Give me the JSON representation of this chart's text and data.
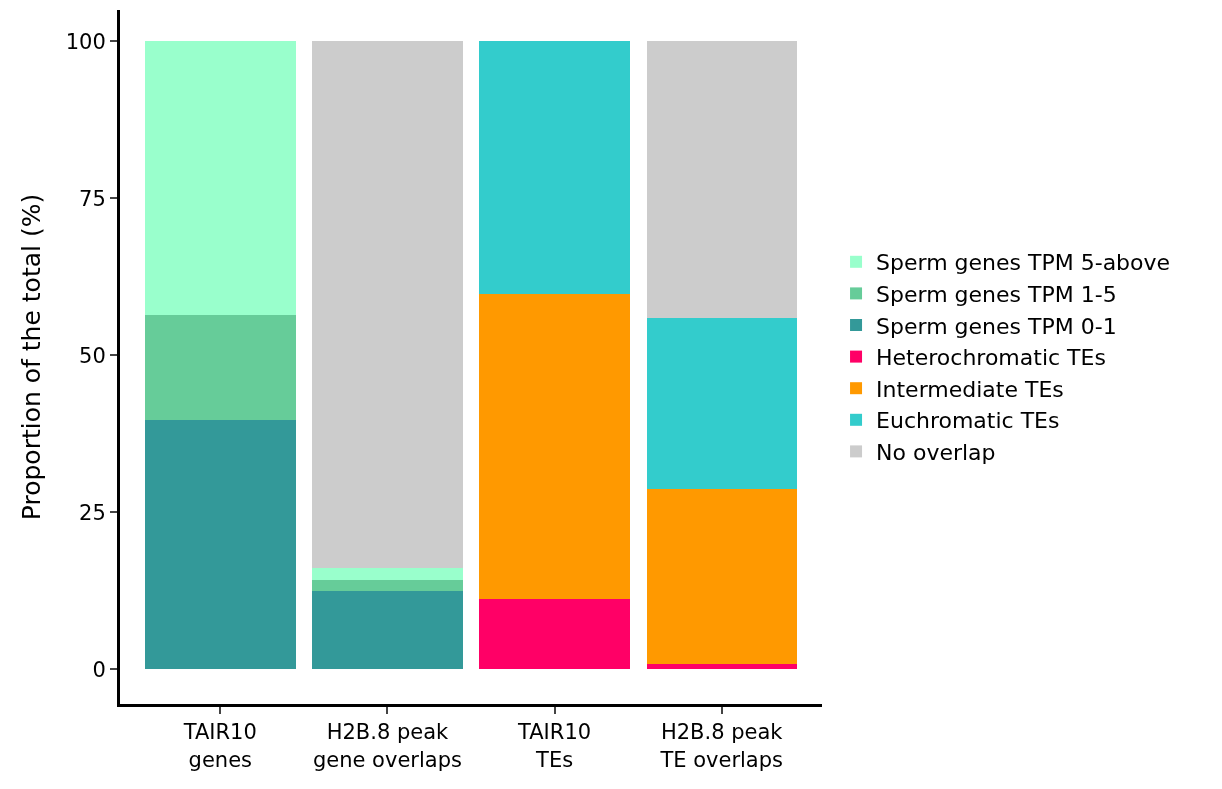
{
  "chart_data": {
    "type": "bar",
    "stacked": true,
    "ylabel": "Proportion of the total (%)",
    "categories": [
      "TAIR10\ngenes",
      "H2B.8 peak\ngene overlaps",
      "TAIR10\nTEs",
      "H2B.8 peak\nTE overlaps"
    ],
    "ylim": [
      -5.5,
      105
    ],
    "yticks": [
      0,
      25,
      50,
      75,
      100
    ],
    "grid": false,
    "legend": "right",
    "series": [
      {
        "name": "Sperm genes TPM 0-1",
        "color": "#339999",
        "values": [
          39.7,
          12.5,
          null,
          null
        ]
      },
      {
        "name": "Sperm genes TPM 1-5",
        "color": "#66cc99",
        "values": [
          16.8,
          1.8,
          null,
          null
        ]
      },
      {
        "name": "Sperm genes TPM 5-above",
        "color": "#99ffcc",
        "values": [
          43.5,
          1.8,
          null,
          null
        ]
      },
      {
        "name": "Heterochromatic TEs",
        "color": "#ff0066",
        "values": [
          null,
          null,
          11.2,
          0.9
        ]
      },
      {
        "name": "Intermediate TEs",
        "color": "#ff9900",
        "values": [
          null,
          null,
          48.6,
          27.8
        ]
      },
      {
        "name": "Euchromatic TEs",
        "color": "#33cccc",
        "values": [
          null,
          null,
          40.2,
          27.3
        ]
      },
      {
        "name": "No overlap",
        "color": "#cccccc",
        "values": [
          null,
          83.9,
          null,
          44.0
        ]
      }
    ]
  }
}
